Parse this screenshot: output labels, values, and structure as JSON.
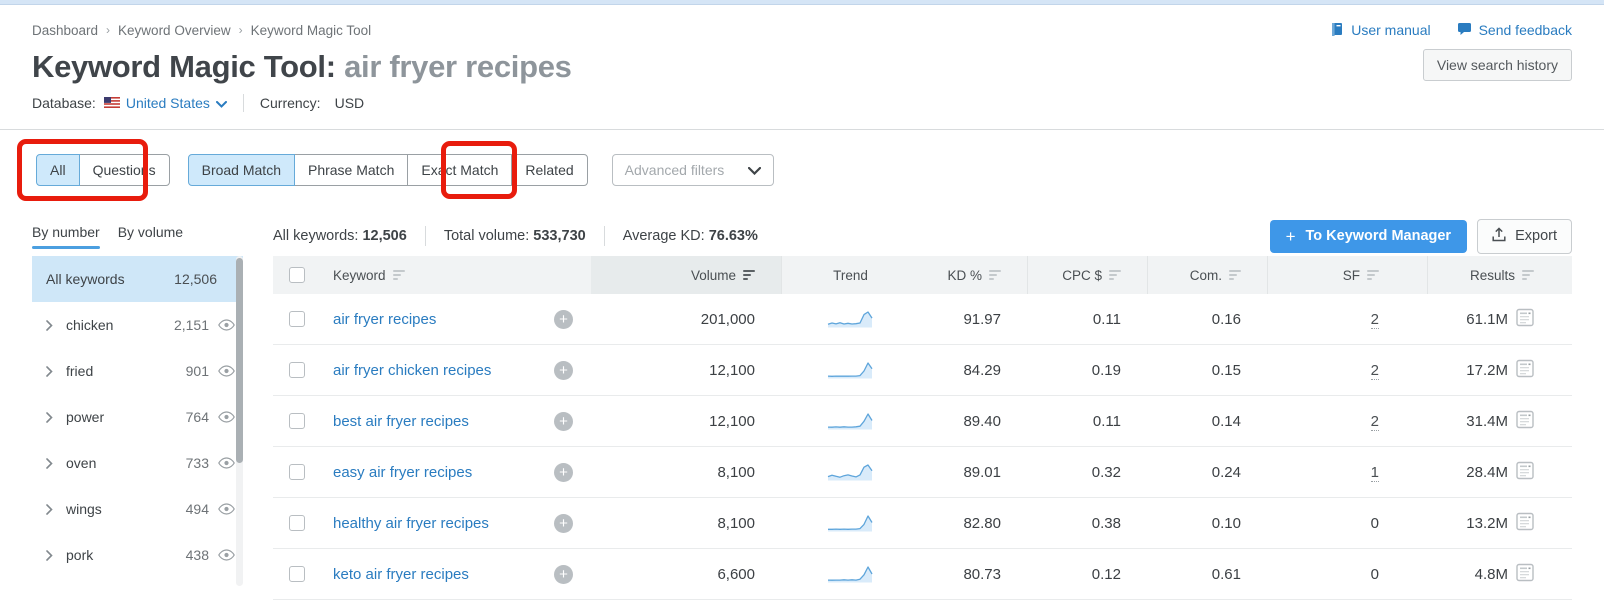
{
  "header": {
    "breadcrumb": [
      "Dashboard",
      "Keyword Overview",
      "Keyword Magic Tool"
    ],
    "title_prefix": "Keyword Magic Tool: ",
    "title_query": "air fryer recipes",
    "user_manual": "User manual",
    "send_feedback": "Send feedback",
    "view_search_history": "View search history",
    "database_label": "Database:",
    "database_value": "United States",
    "currency_label": "Currency:",
    "currency_value": "USD"
  },
  "filters": {
    "group1": [
      {
        "label": "All",
        "selected": true
      },
      {
        "label": "Questions",
        "selected": false
      }
    ],
    "group2": [
      {
        "label": "Broad Match",
        "selected": true
      },
      {
        "label": "Phrase Match",
        "selected": false
      },
      {
        "label": "Exact Match",
        "selected": false
      },
      {
        "label": "Related",
        "selected": false
      }
    ],
    "advanced_filters": "Advanced filters"
  },
  "subheader": {
    "view_tabs": [
      {
        "label": "By number",
        "active": true
      },
      {
        "label": "By volume",
        "active": false
      }
    ],
    "stats": [
      {
        "label": "All keywords:",
        "value": "12,506"
      },
      {
        "label": "Total volume:",
        "value": "533,730"
      },
      {
        "label": "Average KD:",
        "value": "76.63%"
      }
    ],
    "to_keyword_manager": "To Keyword Manager",
    "export": "Export"
  },
  "sidebar": {
    "header": {
      "label": "All keywords",
      "count": "12,506"
    },
    "items": [
      {
        "label": "chicken",
        "count": "2,151"
      },
      {
        "label": "fried",
        "count": "901"
      },
      {
        "label": "power",
        "count": "764"
      },
      {
        "label": "oven",
        "count": "733"
      },
      {
        "label": "wings",
        "count": "494"
      },
      {
        "label": "pork",
        "count": "438"
      }
    ]
  },
  "table": {
    "columns": [
      {
        "label": "Keyword"
      },
      {
        "label": "Volume"
      },
      {
        "label": "Trend"
      },
      {
        "label": "KD %"
      },
      {
        "label": "CPC $"
      },
      {
        "label": "Com."
      },
      {
        "label": "SF"
      },
      {
        "label": "Results"
      }
    ],
    "rows": [
      {
        "keyword": "air fryer recipes",
        "volume": "201,000",
        "kd": "91.97",
        "cpc": "0.11",
        "com": "0.16",
        "sf": "2",
        "sf_link": true,
        "results": "61.1M",
        "trend": [
          0.16,
          0.24,
          0.18,
          0.26,
          0.17,
          0.22,
          0.17,
          0.19,
          0.24,
          0.82,
          1.0,
          0.58
        ]
      },
      {
        "keyword": "air fryer chicken recipes",
        "volume": "12,100",
        "kd": "84.29",
        "cpc": "0.19",
        "com": "0.15",
        "sf": "2",
        "sf_link": true,
        "results": "17.2M",
        "trend": [
          0.1,
          0.08,
          0.1,
          0.09,
          0.1,
          0.09,
          0.1,
          0.1,
          0.13,
          0.45,
          1.0,
          0.6
        ]
      },
      {
        "keyword": "best air fryer recipes",
        "volume": "12,100",
        "kd": "89.40",
        "cpc": "0.11",
        "com": "0.14",
        "sf": "2",
        "sf_link": true,
        "results": "31.4M",
        "trend": [
          0.1,
          0.09,
          0.11,
          0.09,
          0.12,
          0.1,
          0.1,
          0.12,
          0.16,
          0.5,
          1.0,
          0.55
        ]
      },
      {
        "keyword": "easy air fryer recipes",
        "volume": "8,100",
        "kd": "89.01",
        "cpc": "0.32",
        "com": "0.24",
        "sf": "1",
        "sf_link": true,
        "results": "28.4M",
        "trend": [
          0.2,
          0.3,
          0.22,
          0.16,
          0.26,
          0.32,
          0.24,
          0.18,
          0.32,
          0.85,
          1.0,
          0.6
        ]
      },
      {
        "keyword": "healthy air fryer recipes",
        "volume": "8,100",
        "kd": "82.80",
        "cpc": "0.38",
        "com": "0.10",
        "sf": "0",
        "sf_link": false,
        "results": "13.2M",
        "trend": [
          0.08,
          0.08,
          0.1,
          0.08,
          0.1,
          0.08,
          0.1,
          0.1,
          0.13,
          0.42,
          1.0,
          0.55
        ]
      },
      {
        "keyword": "keto air fryer recipes",
        "volume": "6,600",
        "kd": "80.73",
        "cpc": "0.12",
        "com": "0.61",
        "sf": "0",
        "sf_link": false,
        "results": "4.8M",
        "trend": [
          0.1,
          0.09,
          0.1,
          0.1,
          0.12,
          0.1,
          0.12,
          0.1,
          0.16,
          0.46,
          1.0,
          0.52
        ]
      }
    ]
  }
}
